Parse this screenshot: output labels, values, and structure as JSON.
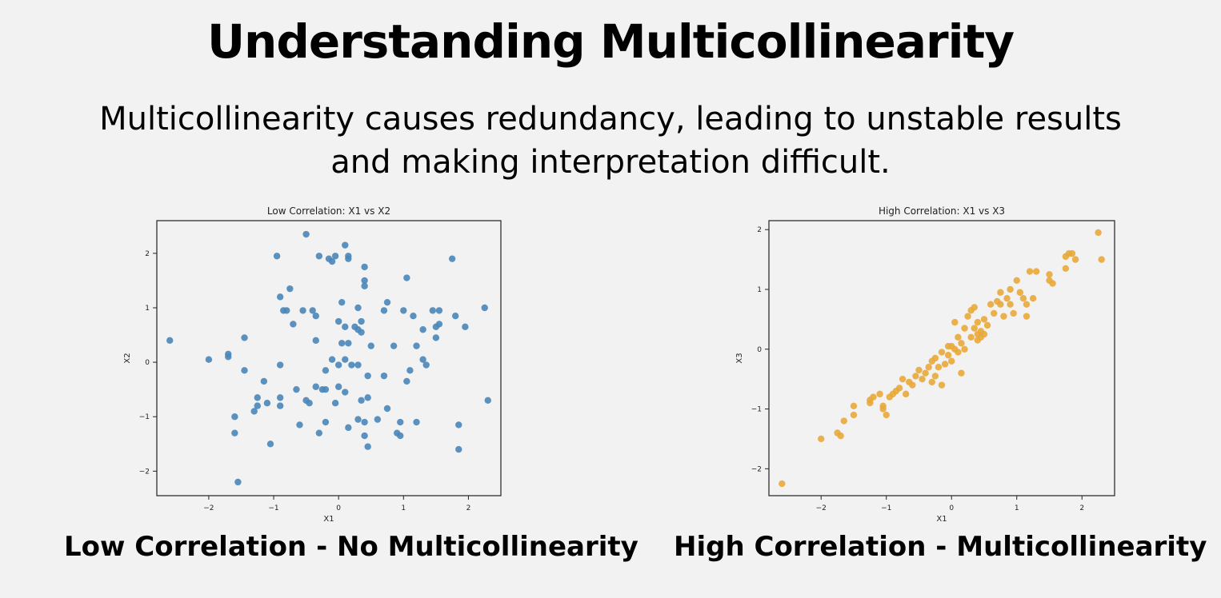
{
  "page": {
    "title": "Understanding Multicollinearity",
    "subtitle_line1": "Multicollinearity causes redundancy, leading to unstable results",
    "subtitle_line2": "and making interpretation difficult."
  },
  "captions": {
    "left": "Low Correlation - No Multicollinearity",
    "right": "High Correlation - Multicollinearity"
  },
  "chart_data": [
    {
      "type": "scatter",
      "title": "Low Correlation: X1 vs X2",
      "xlabel": "X1",
      "ylabel": "X2",
      "xlim": [
        -2.8,
        2.5
      ],
      "ylim": [
        -2.45,
        2.6
      ],
      "xticks": [
        -2,
        -1,
        0,
        1,
        2
      ],
      "yticks": [
        -2,
        -1,
        0,
        1,
        2
      ],
      "grid": false,
      "color": "#4a86b8",
      "points": [
        [
          -2.6,
          0.4
        ],
        [
          -2.0,
          0.05
        ],
        [
          -1.7,
          0.1
        ],
        [
          -1.7,
          0.15
        ],
        [
          -1.6,
          -1.0
        ],
        [
          -1.6,
          -1.3
        ],
        [
          -1.55,
          -2.2
        ],
        [
          -1.45,
          0.45
        ],
        [
          -1.45,
          -0.15
        ],
        [
          -1.3,
          -0.9
        ],
        [
          -1.25,
          -0.8
        ],
        [
          -1.25,
          -0.65
        ],
        [
          -1.15,
          -0.35
        ],
        [
          -1.1,
          -0.75
        ],
        [
          -1.05,
          -1.5
        ],
        [
          -0.95,
          1.95
        ],
        [
          -0.9,
          1.2
        ],
        [
          -0.9,
          -0.05
        ],
        [
          -0.9,
          -0.65
        ],
        [
          -0.9,
          -0.8
        ],
        [
          -0.85,
          0.95
        ],
        [
          -0.8,
          0.95
        ],
        [
          -0.75,
          1.35
        ],
        [
          -0.7,
          0.7
        ],
        [
          -0.65,
          -0.5
        ],
        [
          -0.6,
          -1.15
        ],
        [
          -0.55,
          0.95
        ],
        [
          -0.5,
          2.35
        ],
        [
          -0.5,
          -0.7
        ],
        [
          -0.45,
          -0.75
        ],
        [
          -0.4,
          0.95
        ],
        [
          -0.35,
          0.4
        ],
        [
          -0.35,
          0.85
        ],
        [
          -0.35,
          -0.45
        ],
        [
          -0.3,
          -1.3
        ],
        [
          -0.3,
          1.95
        ],
        [
          -0.25,
          -0.5
        ],
        [
          -0.2,
          -1.1
        ],
        [
          -0.2,
          -0.5
        ],
        [
          -0.2,
          -0.15
        ],
        [
          -0.15,
          1.9
        ],
        [
          -0.1,
          1.85
        ],
        [
          -0.1,
          0.05
        ],
        [
          -0.05,
          1.95
        ],
        [
          -0.05,
          -0.75
        ],
        [
          0.0,
          0.75
        ],
        [
          0.0,
          -0.45
        ],
        [
          0.0,
          -0.05
        ],
        [
          0.05,
          1.1
        ],
        [
          0.05,
          0.35
        ],
        [
          0.1,
          2.15
        ],
        [
          0.1,
          0.65
        ],
        [
          0.1,
          0.05
        ],
        [
          0.1,
          -0.55
        ],
        [
          0.15,
          1.95
        ],
        [
          0.15,
          1.9
        ],
        [
          0.15,
          0.35
        ],
        [
          0.15,
          -1.2
        ],
        [
          0.2,
          -0.05
        ],
        [
          0.25,
          0.65
        ],
        [
          0.3,
          1.0
        ],
        [
          0.3,
          0.6
        ],
        [
          0.3,
          -0.05
        ],
        [
          0.3,
          -1.05
        ],
        [
          0.35,
          0.55
        ],
        [
          0.35,
          0.75
        ],
        [
          0.35,
          -0.7
        ],
        [
          0.4,
          1.75
        ],
        [
          0.4,
          1.5
        ],
        [
          0.4,
          1.4
        ],
        [
          0.4,
          -1.1
        ],
        [
          0.4,
          -1.35
        ],
        [
          0.45,
          -0.25
        ],
        [
          0.45,
          -0.65
        ],
        [
          0.45,
          -1.55
        ],
        [
          0.5,
          0.3
        ],
        [
          0.6,
          -1.05
        ],
        [
          0.7,
          0.95
        ],
        [
          0.7,
          -0.25
        ],
        [
          0.75,
          1.1
        ],
        [
          0.75,
          -0.85
        ],
        [
          0.85,
          0.3
        ],
        [
          0.9,
          -1.3
        ],
        [
          0.95,
          -1.35
        ],
        [
          0.95,
          -1.1
        ],
        [
          1.0,
          0.95
        ],
        [
          1.05,
          1.55
        ],
        [
          1.05,
          -0.35
        ],
        [
          1.1,
          -0.15
        ],
        [
          1.15,
          0.85
        ],
        [
          1.2,
          -1.1
        ],
        [
          1.2,
          0.3
        ],
        [
          1.3,
          0.05
        ],
        [
          1.3,
          0.6
        ],
        [
          1.35,
          -0.05
        ],
        [
          1.45,
          0.95
        ],
        [
          1.5,
          0.65
        ],
        [
          1.5,
          0.45
        ],
        [
          1.55,
          0.95
        ],
        [
          1.55,
          0.7
        ],
        [
          1.75,
          1.9
        ],
        [
          1.8,
          0.85
        ],
        [
          1.85,
          -1.15
        ],
        [
          1.85,
          -1.6
        ],
        [
          1.95,
          0.65
        ],
        [
          2.25,
          1.0
        ],
        [
          2.3,
          -0.7
        ]
      ]
    },
    {
      "type": "scatter",
      "title": "High Correlation: X1 vs X3",
      "xlabel": "X1",
      "ylabel": "X3",
      "xlim": [
        -2.8,
        2.5
      ],
      "ylim": [
        -2.45,
        2.15
      ],
      "xticks": [
        -2,
        -1,
        0,
        1,
        2
      ],
      "yticks": [
        -2,
        -1,
        0,
        1,
        2
      ],
      "grid": false,
      "color": "#e8a93a",
      "points": [
        [
          -2.6,
          -2.25
        ],
        [
          -2.0,
          -1.5
        ],
        [
          -1.75,
          -1.4
        ],
        [
          -1.7,
          -1.45
        ],
        [
          -1.65,
          -1.2
        ],
        [
          -1.5,
          -1.1
        ],
        [
          -1.5,
          -0.95
        ],
        [
          -1.25,
          -0.9
        ],
        [
          -1.2,
          -0.8
        ],
        [
          -1.25,
          -0.85
        ],
        [
          -1.1,
          -0.75
        ],
        [
          -1.05,
          -0.95
        ],
        [
          -1.0,
          -1.1
        ],
        [
          -1.05,
          -1.0
        ],
        [
          -0.95,
          -0.8
        ],
        [
          -0.9,
          -0.75
        ],
        [
          -0.85,
          -0.7
        ],
        [
          -0.8,
          -0.65
        ],
        [
          -0.75,
          -0.5
        ],
        [
          -0.7,
          -0.75
        ],
        [
          -0.65,
          -0.55
        ],
        [
          -0.6,
          -0.6
        ],
        [
          -0.55,
          -0.45
        ],
        [
          -0.5,
          -0.35
        ],
        [
          -0.45,
          -0.5
        ],
        [
          -0.4,
          -0.4
        ],
        [
          -0.35,
          -0.3
        ],
        [
          -0.3,
          -0.2
        ],
        [
          -0.3,
          -0.55
        ],
        [
          -0.25,
          -0.45
        ],
        [
          -0.25,
          -0.15
        ],
        [
          -0.2,
          -0.3
        ],
        [
          -0.15,
          -0.05
        ],
        [
          -0.15,
          -0.6
        ],
        [
          -0.1,
          -0.25
        ],
        [
          -0.05,
          -0.1
        ],
        [
          -0.05,
          0.05
        ],
        [
          0.0,
          -0.2
        ],
        [
          0.0,
          0.05
        ],
        [
          0.05,
          0.0
        ],
        [
          0.05,
          0.45
        ],
        [
          0.1,
          -0.05
        ],
        [
          0.1,
          0.2
        ],
        [
          0.15,
          -0.4
        ],
        [
          0.15,
          0.1
        ],
        [
          0.2,
          0.0
        ],
        [
          0.2,
          0.35
        ],
        [
          0.25,
          0.55
        ],
        [
          0.3,
          0.65
        ],
        [
          0.3,
          0.2
        ],
        [
          0.35,
          0.35
        ],
        [
          0.35,
          0.7
        ],
        [
          0.4,
          0.25
        ],
        [
          0.4,
          0.15
        ],
        [
          0.4,
          0.45
        ],
        [
          0.45,
          0.3
        ],
        [
          0.45,
          0.2
        ],
        [
          0.5,
          0.5
        ],
        [
          0.5,
          0.25
        ],
        [
          0.55,
          0.4
        ],
        [
          0.6,
          0.75
        ],
        [
          0.65,
          0.6
        ],
        [
          0.7,
          0.8
        ],
        [
          0.75,
          0.75
        ],
        [
          0.75,
          0.95
        ],
        [
          0.8,
          0.55
        ],
        [
          0.85,
          0.85
        ],
        [
          0.9,
          0.75
        ],
        [
          0.9,
          1.0
        ],
        [
          0.95,
          0.6
        ],
        [
          1.0,
          1.15
        ],
        [
          1.05,
          0.95
        ],
        [
          1.1,
          0.85
        ],
        [
          1.15,
          0.75
        ],
        [
          1.15,
          0.55
        ],
        [
          1.2,
          1.3
        ],
        [
          1.25,
          0.85
        ],
        [
          1.3,
          1.3
        ],
        [
          1.5,
          1.15
        ],
        [
          1.5,
          1.25
        ],
        [
          1.55,
          1.1
        ],
        [
          1.75,
          1.35
        ],
        [
          1.75,
          1.55
        ],
        [
          1.8,
          1.6
        ],
        [
          1.85,
          1.6
        ],
        [
          1.9,
          1.5
        ],
        [
          2.25,
          1.95
        ],
        [
          2.3,
          1.5
        ]
      ]
    }
  ]
}
